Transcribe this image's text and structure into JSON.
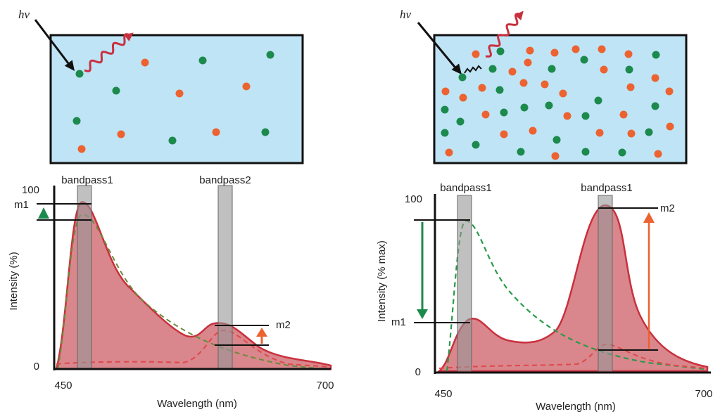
{
  "panels": [
    {
      "photon_label": "hv",
      "bandpass_labels": [
        "bandpass1",
        "bandpass2"
      ],
      "y_max_label": "100",
      "y_min_label": "0",
      "y_axis_label": "Intensity (%)",
      "x_min_label": "450",
      "x_max_label": "700",
      "x_axis_label": "Wavelength (nm)",
      "marker_labels": [
        "m1",
        "m2"
      ]
    },
    {
      "photon_label": "hv",
      "bandpass_labels": [
        "bandpass1",
        "bandpass1"
      ],
      "y_max_label": "100",
      "y_min_label": "0",
      "y_axis_label": "Intensity (% max)",
      "x_min_label": "450",
      "x_max_label": "700",
      "x_axis_label": "Wavelength (nm)",
      "marker_labels": [
        "m1",
        "m2"
      ]
    }
  ]
}
